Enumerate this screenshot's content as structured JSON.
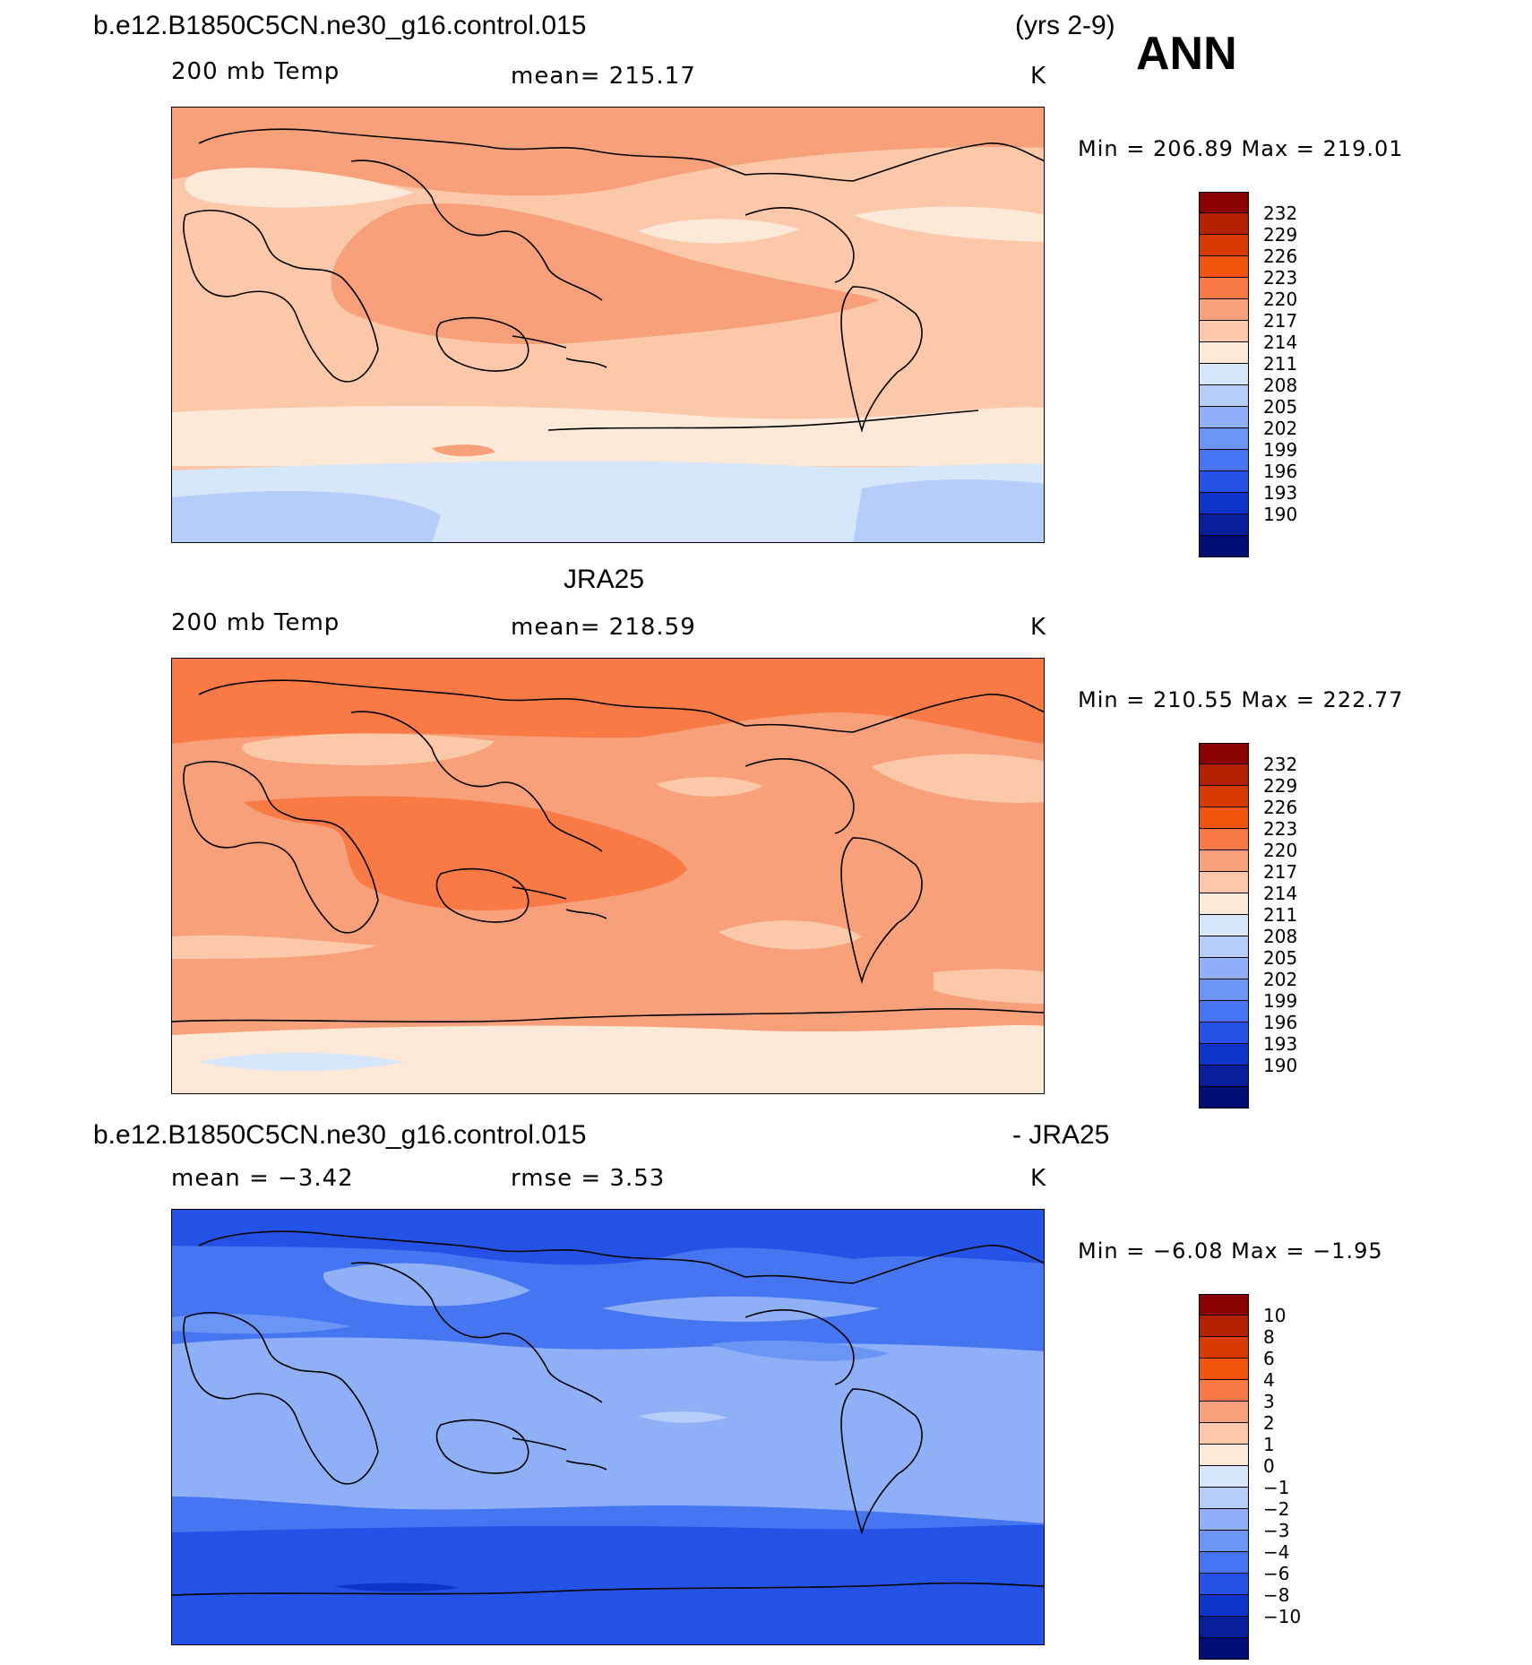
{
  "page": {
    "case_name": "b.e12.B1850C5CN.ne30_g16.control.015",
    "years": "(yrs 2-9)",
    "season": "ANN"
  },
  "panel1": {
    "variable": "200 mb Temp",
    "mean": "mean= 215.17",
    "units": "K",
    "minmax": "Min = 206.89 Max = 219.01",
    "levels": [
      "232",
      "229",
      "226",
      "223",
      "220",
      "217",
      "214",
      "211",
      "208",
      "205",
      "202",
      "199",
      "196",
      "193",
      "190"
    ]
  },
  "panel2": {
    "title": "JRA25",
    "variable": "200 mb Temp",
    "mean": "mean= 218.59",
    "units": "K",
    "minmax": "Min = 210.55 Max = 222.77",
    "levels": [
      "232",
      "229",
      "226",
      "223",
      "220",
      "217",
      "214",
      "211",
      "208",
      "205",
      "202",
      "199",
      "196",
      "193",
      "190"
    ]
  },
  "panel3": {
    "title_left": "b.e12.B1850C5CN.ne30_g16.control.015",
    "title_right": "- JRA25",
    "mean": "mean =   −3.42",
    "rmse": "rmse =    3.53",
    "units": "K",
    "minmax": "Min =  −6.08 Max =  −1.95",
    "levels": [
      "10",
      "8",
      "6",
      "4",
      "3",
      "2",
      "1",
      "0",
      "−1",
      "−2",
      "−3",
      "−4",
      "−6",
      "−8",
      "−10"
    ]
  },
  "colorbar_colors": [
    "#8b0000",
    "#b22200",
    "#d93a00",
    "#f2540d",
    "#fa7a45",
    "#f7a07a",
    "#fbc8aa",
    "#fde9d7",
    "#d6e7fb",
    "#b5cdf8",
    "#8fb0f7",
    "#6a95f4",
    "#4575f0",
    "#2552e6",
    "#0f34c9",
    "#071f99",
    "#000e73"
  ],
  "map_colors": {
    "c208": "#b5cdf8",
    "c211": "#d6e7fb",
    "c214": "#fde9d7",
    "c217": "#fbc8aa",
    "c220": "#f7a07a",
    "c223": "#fa7a45",
    "d_m1": "#b5cdf8",
    "d_m2": "#8fb0f7",
    "d_m3": "#6a95f4",
    "d_m4": "#4575f0",
    "d_m6": "#2552e6"
  }
}
